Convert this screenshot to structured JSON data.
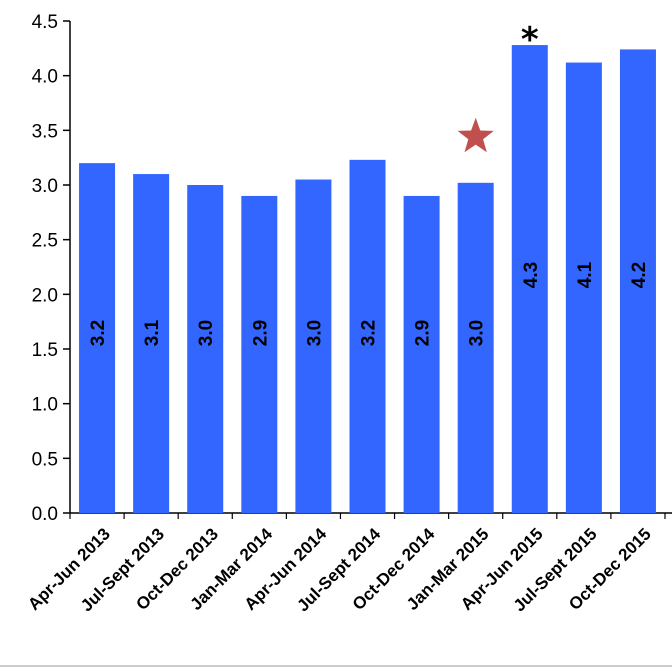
{
  "chart_data": {
    "type": "bar",
    "title": "",
    "xlabel": "",
    "ylabel": "",
    "categories": [
      "Apr-Jun 2013",
      "Jul-Sept 2013",
      "Oct-Dec 2013",
      "Jan-Mar 2014",
      "Apr-Jun 2014",
      "Jul-Sept 2014",
      "Oct-Dec 2014",
      "Jan-Mar 2015",
      "Apr-Jun 2015",
      "Jul-Sept 2015",
      "Oct-Dec 2015"
    ],
    "values": [
      3.2,
      3.1,
      3.0,
      2.9,
      3.05,
      3.23,
      2.9,
      3.02,
      4.28,
      4.12,
      4.24
    ],
    "data_labels": [
      "3.2",
      "3.1",
      "3.0",
      "2.9",
      "3.0",
      "3.2",
      "2.9",
      "3.0",
      "4.3",
      "4.1",
      "4.2"
    ],
    "ylim": [
      0,
      4.5
    ],
    "yticks": [
      "0.0",
      "0.5",
      "1.0",
      "1.5",
      "2.0",
      "2.5",
      "3.0",
      "3.5",
      "4.0",
      "4.5"
    ],
    "grid": false,
    "legend": "none",
    "bar_color": "#3366ff",
    "markers": [
      {
        "category": "Jan-Mar 2015",
        "symbol": "star",
        "color": "#c0504d"
      },
      {
        "category": "Apr-Jun 2015",
        "symbol": "asterisk",
        "text": "*",
        "color": "#000000"
      }
    ]
  }
}
